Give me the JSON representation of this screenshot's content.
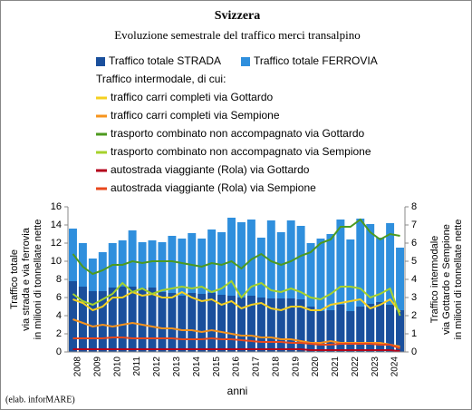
{
  "chart_data": {
    "type": "bar-line",
    "title": "Svizzera",
    "subtitle": "Evoluzione semestrale del traffico merci transalpino",
    "legend_heading": "Traffico intermodale, di cui:",
    "x_label": "anni",
    "y_label": [
      "Traffico totale",
      "via strada e via ferrovia",
      "in milioni di tonnellate nette"
    ],
    "y2_label": [
      "Traffico intermodale",
      "via Gottardo e Sempione",
      "in milioni di tonnellate nette"
    ],
    "source": "(elab. inforMARE)",
    "categories": [
      "2008",
      null,
      "2009",
      null,
      "2010",
      null,
      "2011",
      null,
      "2012",
      null,
      "2013",
      null,
      "2014",
      null,
      "2015",
      null,
      "2016",
      null,
      "2017",
      null,
      "2018",
      null,
      "2019",
      null,
      "2020",
      null,
      "2021",
      null,
      "2022",
      null,
      "2023",
      null,
      "2024",
      null
    ],
    "ylim": [
      0,
      16
    ],
    "yticks": [
      0,
      2,
      4,
      6,
      8,
      10,
      12,
      14,
      16
    ],
    "y2lim": [
      0,
      8
    ],
    "y2ticks": [
      0,
      1,
      2,
      3,
      4,
      5,
      6,
      7,
      8
    ],
    "grid": false,
    "series": [
      {
        "name": "Traffico totale FERROVIA",
        "type": "bar",
        "color": "#2f8fdd",
        "values": [
          13.6,
          12.0,
          10.3,
          11.0,
          12.0,
          12.3,
          13.4,
          12.1,
          12.3,
          12.1,
          12.8,
          12.5,
          13.1,
          12.5,
          13.5,
          13.2,
          14.8,
          14.3,
          14.6,
          12.6,
          14.5,
          13.2,
          14.5,
          13.9,
          12.0,
          12.5,
          13.0,
          14.6,
          12.4,
          14.7,
          14.1,
          12.6,
          14.2,
          11.5
        ]
      },
      {
        "name": "Traffico totale STRADA",
        "type": "bar",
        "color": "#1a4f9c",
        "values": [
          7.8,
          7.2,
          6.7,
          6.7,
          7.1,
          7.2,
          7.2,
          7.0,
          7.1,
          6.6,
          6.5,
          6.2,
          6.5,
          6.4,
          6.5,
          6.3,
          6.2,
          6.0,
          6.2,
          6.0,
          5.9,
          5.9,
          5.9,
          5.8,
          5.0,
          4.5,
          4.6,
          5.2,
          4.5,
          5.0,
          5.3,
          5.5,
          5.2,
          4.6
        ]
      },
      {
        "name": "traffico carri completi via Gottardo",
        "type": "line",
        "axis": "y2",
        "color": "#f5d020",
        "values": [
          2.9,
          2.7,
          2.3,
          2.5,
          3.0,
          3.0,
          3.3,
          3.1,
          3.2,
          3.0,
          3.0,
          3.3,
          3.0,
          2.8,
          2.9,
          2.6,
          2.8,
          2.4,
          2.6,
          2.7,
          2.4,
          2.3,
          2.5,
          2.5,
          2.3,
          2.3,
          2.6,
          2.7,
          2.8,
          2.9,
          2.4,
          2.6,
          2.9,
          2.2
        ]
      },
      {
        "name": "traffico carri completi via Sempione",
        "type": "line",
        "axis": "y2",
        "color": "#f7941d",
        "values": [
          1.8,
          1.6,
          1.4,
          1.5,
          1.4,
          1.5,
          1.6,
          1.5,
          1.4,
          1.3,
          1.3,
          1.2,
          1.2,
          1.1,
          1.2,
          1.1,
          1.0,
          0.9,
          0.9,
          0.8,
          0.8,
          0.7,
          0.7,
          0.6,
          0.5,
          0.5,
          0.6,
          0.5,
          0.5,
          0.5,
          0.5,
          0.5,
          0.4,
          0.3
        ]
      },
      {
        "name": "trasporto combinato non accompagnato via Gottardo",
        "type": "line",
        "axis": "y2",
        "color": "#4d9a1f",
        "values": [
          5.4,
          4.7,
          4.3,
          4.5,
          4.8,
          4.8,
          5.0,
          4.9,
          5.0,
          5.0,
          5.0,
          4.9,
          4.8,
          4.7,
          4.9,
          4.8,
          5.0,
          4.6,
          5.1,
          5.4,
          5.0,
          4.8,
          5.0,
          5.3,
          5.5,
          6.0,
          6.2,
          6.9,
          6.9,
          7.3,
          6.6,
          6.2,
          6.5,
          6.4
        ]
      },
      {
        "name": "trasporto combinato non accompagnato via Sempione",
        "type": "line",
        "axis": "y2",
        "color": "#a6d22b",
        "values": [
          3.2,
          2.8,
          2.6,
          2.9,
          3.2,
          3.8,
          3.3,
          3.5,
          3.2,
          3.4,
          3.5,
          3.6,
          3.5,
          3.6,
          3.3,
          3.5,
          3.9,
          3.0,
          3.6,
          3.8,
          3.4,
          3.3,
          3.5,
          3.3,
          3.0,
          2.9,
          3.2,
          3.6,
          3.6,
          3.5,
          3.0,
          3.2,
          3.5,
          2.0
        ]
      },
      {
        "name": "autostrada viaggiante (Rola) via Gottardo",
        "type": "line",
        "axis": "y2",
        "color": "#b3001b",
        "values": [
          0.15,
          0.15,
          0.15,
          0.15,
          0.15,
          0.15,
          0.15,
          0.15,
          0.15,
          0.15,
          0.15,
          0.15,
          0.15,
          0.15,
          0.15,
          0.15,
          0.15,
          0.15,
          0.15,
          0.15,
          0.15,
          0.15,
          0.15,
          0.15,
          0.1,
          0.1,
          0.1,
          0.1,
          0.1,
          0.1,
          0.1,
          0.1,
          0.1,
          0.05
        ]
      },
      {
        "name": "autostrada viaggiante (Rola) via Sempione",
        "type": "line",
        "axis": "y2",
        "color": "#e8481c",
        "values": [
          0.75,
          0.75,
          0.75,
          0.75,
          0.8,
          0.8,
          0.75,
          0.75,
          0.75,
          0.75,
          0.75,
          0.7,
          0.7,
          0.7,
          0.75,
          0.7,
          0.7,
          0.65,
          0.6,
          0.55,
          0.55,
          0.55,
          0.5,
          0.5,
          0.45,
          0.4,
          0.4,
          0.45,
          0.45,
          0.45,
          0.45,
          0.4,
          0.4,
          0.2
        ]
      }
    ]
  }
}
